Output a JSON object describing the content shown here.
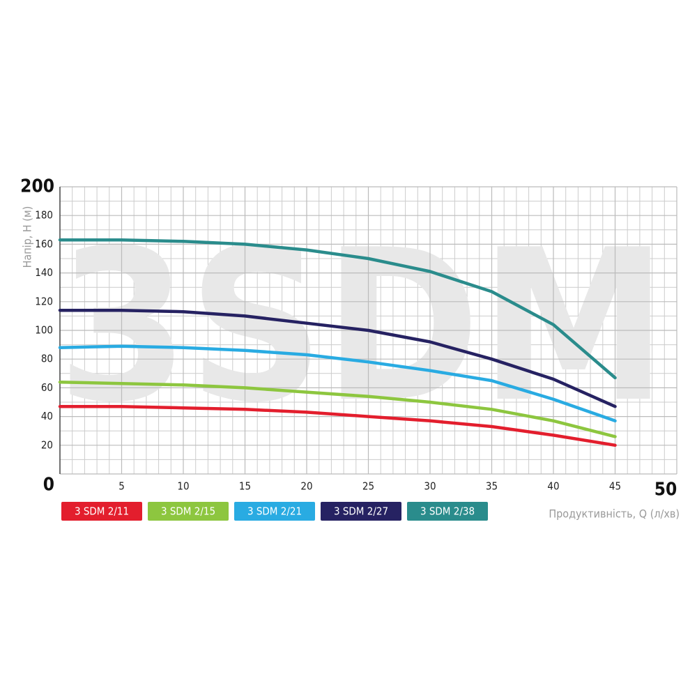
{
  "chart_data": {
    "type": "line",
    "watermark": "3SDM",
    "y_label": "Напір, H (м)",
    "x_label": "Продуктивність, Q (л/хв)",
    "x": [
      0,
      5,
      10,
      15,
      20,
      25,
      30,
      35,
      40,
      45
    ],
    "xlim": [
      0,
      50
    ],
    "xticks": [
      5,
      10,
      15,
      20,
      25,
      30,
      35,
      40,
      45,
      50
    ],
    "ylim": [
      0,
      200
    ],
    "yticks": [
      0,
      20,
      40,
      60,
      80,
      100,
      120,
      140,
      160,
      180,
      200
    ],
    "grid": true,
    "series": [
      {
        "name": "3 SDM 2/11",
        "color": "#e31e2d",
        "values": [
          47,
          47,
          46,
          45,
          43,
          40,
          37,
          33,
          27,
          20
        ]
      },
      {
        "name": "3 SDM 2/15",
        "color": "#8dc63f",
        "values": [
          64,
          63,
          62,
          60,
          57,
          54,
          50,
          45,
          37,
          26
        ]
      },
      {
        "name": "3 SDM 2/21",
        "color": "#29abe2",
        "values": [
          88,
          89,
          88,
          86,
          83,
          78,
          72,
          65,
          52,
          37
        ]
      },
      {
        "name": "3 SDM 2/27",
        "color": "#262262",
        "values": [
          114,
          114,
          113,
          110,
          105,
          100,
          92,
          80,
          66,
          47
        ]
      },
      {
        "name": "3 SDM 2/38",
        "color": "#2a8c8c",
        "values": [
          163,
          163,
          162,
          160,
          156,
          150,
          141,
          127,
          104,
          67
        ]
      }
    ]
  }
}
